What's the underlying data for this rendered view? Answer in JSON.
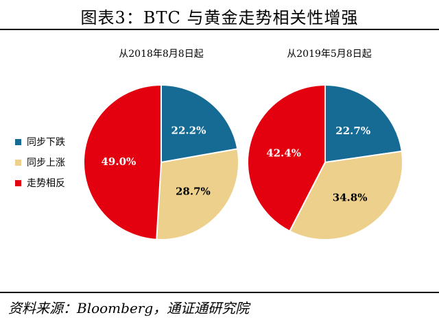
{
  "header": {
    "title": "图表3：BTC 与黄金走势相关性增强"
  },
  "footer": {
    "source": "资料来源：Bloomberg，通证通研究院"
  },
  "colors": {
    "down": "#156b94",
    "up": "#ecd08b",
    "opposite": "#e3000f"
  },
  "chart_data": [
    {
      "type": "pie",
      "title": "从2018年8月8日起",
      "labels": [
        "同步下跌",
        "同步上涨",
        "走势相反"
      ],
      "values": [
        22.2,
        28.7,
        49.0
      ],
      "data_labels": [
        "22.2%",
        "28.7%",
        "49.0%"
      ],
      "legend": "left"
    },
    {
      "type": "pie",
      "title": "从2019年5月8日起",
      "labels": [
        "同步下跌",
        "同步上涨",
        "走势相反"
      ],
      "values": [
        22.7,
        34.8,
        42.4
      ],
      "data_labels": [
        "22.7%",
        "34.8%",
        "42.4%"
      ],
      "legend": "left"
    }
  ]
}
